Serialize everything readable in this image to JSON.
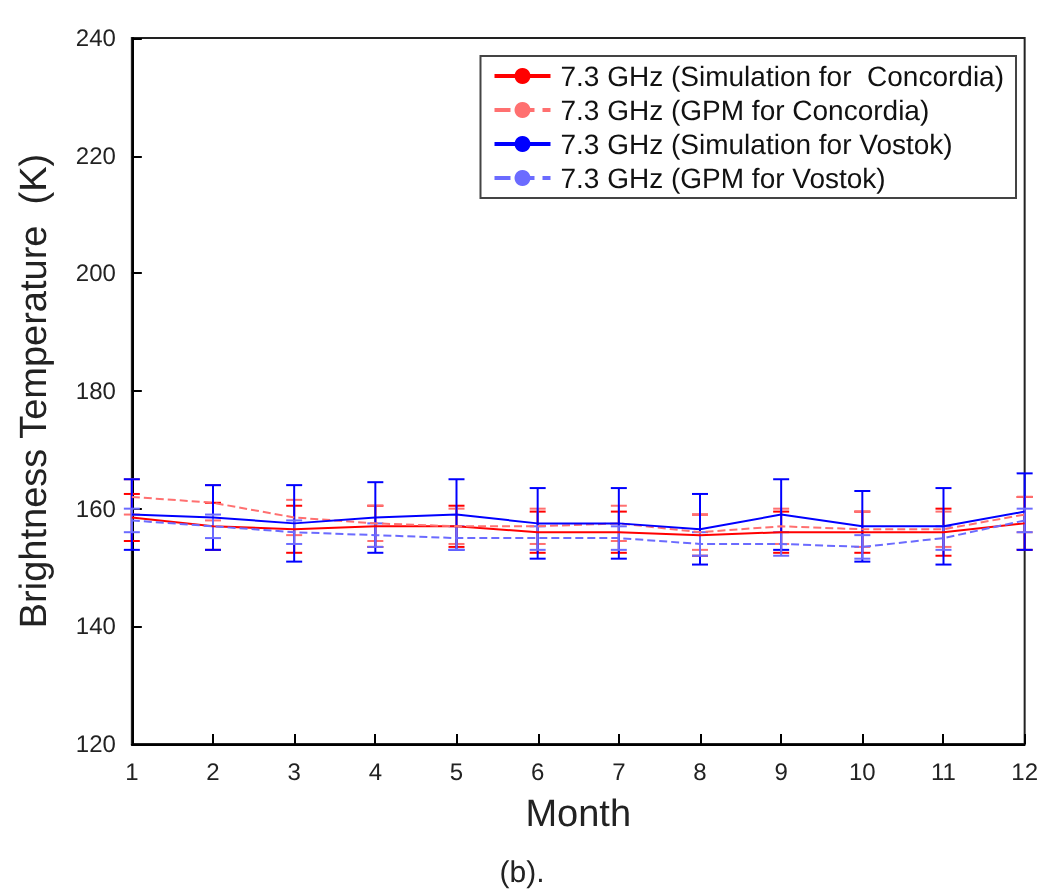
{
  "chart_data": {
    "type": "line",
    "xlabel": "Month",
    "ylabel": "Brightness Temperature  (K)",
    "annotations": [
      "(b)."
    ],
    "x": [
      1,
      2,
      3,
      4,
      5,
      6,
      7,
      8,
      9,
      10,
      11,
      12
    ],
    "xlim": [
      1,
      12
    ],
    "xticks": [
      1,
      2,
      3,
      4,
      5,
      6,
      7,
      8,
      9,
      10,
      11,
      12
    ],
    "ylim": [
      120,
      240
    ],
    "yticks": [
      120,
      140,
      160,
      180,
      200,
      220,
      240
    ],
    "grid": false,
    "legend": "top right",
    "marker": "none",
    "series": [
      {
        "name": "7.3 GHz (Simulation for  Concordia)",
        "color": "#ff0000",
        "line_style": "solid",
        "values": [
          158.5,
          157,
          156.5,
          157,
          157,
          156,
          156,
          155.5,
          156,
          156,
          156,
          157.5
        ],
        "errors": [
          4,
          4,
          4,
          3.5,
          3.5,
          3.5,
          3.5,
          3.5,
          3.5,
          3.5,
          4,
          4.5
        ]
      },
      {
        "name": "7.3 GHz (GPM for Concordia)",
        "color": "#ff7070",
        "line_style": "dashed",
        "values": [
          162,
          161,
          158.5,
          157.5,
          157,
          157,
          157.5,
          156,
          157,
          156.5,
          156.5,
          159
        ],
        "errors": [
          3,
          3,
          3,
          3,
          3,
          3,
          3,
          3,
          3,
          3,
          3,
          3
        ]
      },
      {
        "name": "7.3 GHz (Simulation for Vostok)",
        "color": "#0000ff",
        "line_style": "solid",
        "values": [
          159,
          158.5,
          157.5,
          158.5,
          159,
          157.5,
          157.5,
          156.5,
          159,
          157,
          157,
          159.5
        ],
        "errors": [
          6,
          5.5,
          6.5,
          6,
          6,
          6,
          6,
          6,
          6,
          6,
          6.5,
          6.5
        ]
      },
      {
        "name": "7.3 GHz (GPM for Vostok)",
        "color": "#6b6bff",
        "line_style": "dashed",
        "values": [
          158,
          157,
          156,
          155.5,
          155,
          155,
          155,
          154,
          154,
          153.5,
          155,
          158
        ],
        "errors": [
          2,
          2,
          2,
          2,
          2,
          2,
          2,
          2,
          2,
          2,
          2,
          2
        ]
      }
    ]
  }
}
